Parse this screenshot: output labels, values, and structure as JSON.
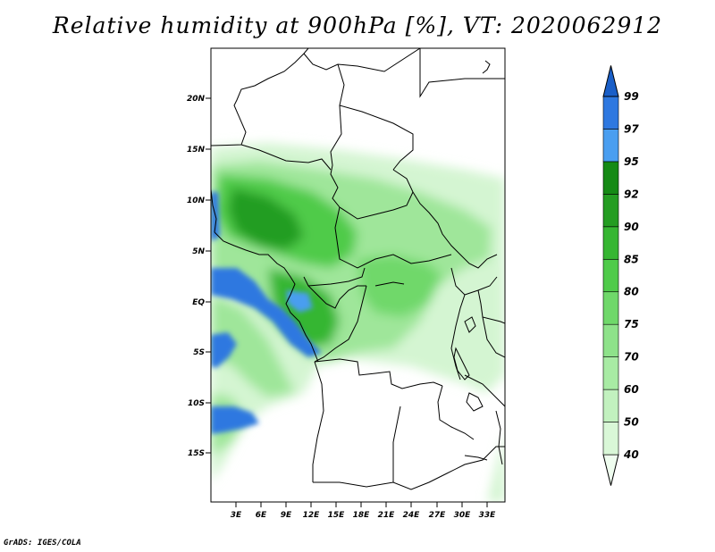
{
  "title": "Relative humidity at 900hPa [%], VT: 2020062912",
  "footer": "GrADS: IGES/COLA",
  "map": {
    "lat_ticks": [
      "20N",
      "15N",
      "10N",
      "5N",
      "EQ",
      "5S",
      "10S",
      "15S"
    ],
    "lon_ticks": [
      "3E",
      "6E",
      "9E",
      "12E",
      "15E",
      "18E",
      "21E",
      "24E",
      "27E",
      "30E",
      "33E"
    ]
  },
  "colorbar": {
    "levels": [
      "40",
      "50",
      "60",
      "70",
      "75",
      "80",
      "85",
      "90",
      "92",
      "95",
      "97",
      "99"
    ],
    "colors": [
      "#effdef",
      "#d9f7d7",
      "#c2f1bf",
      "#a8eba4",
      "#8ee28a",
      "#6fd86a",
      "#4fcb4a",
      "#36b632",
      "#249d22",
      "#158a15",
      "#4a9ef0",
      "#2e78e0",
      "#1a5fc8"
    ]
  }
}
